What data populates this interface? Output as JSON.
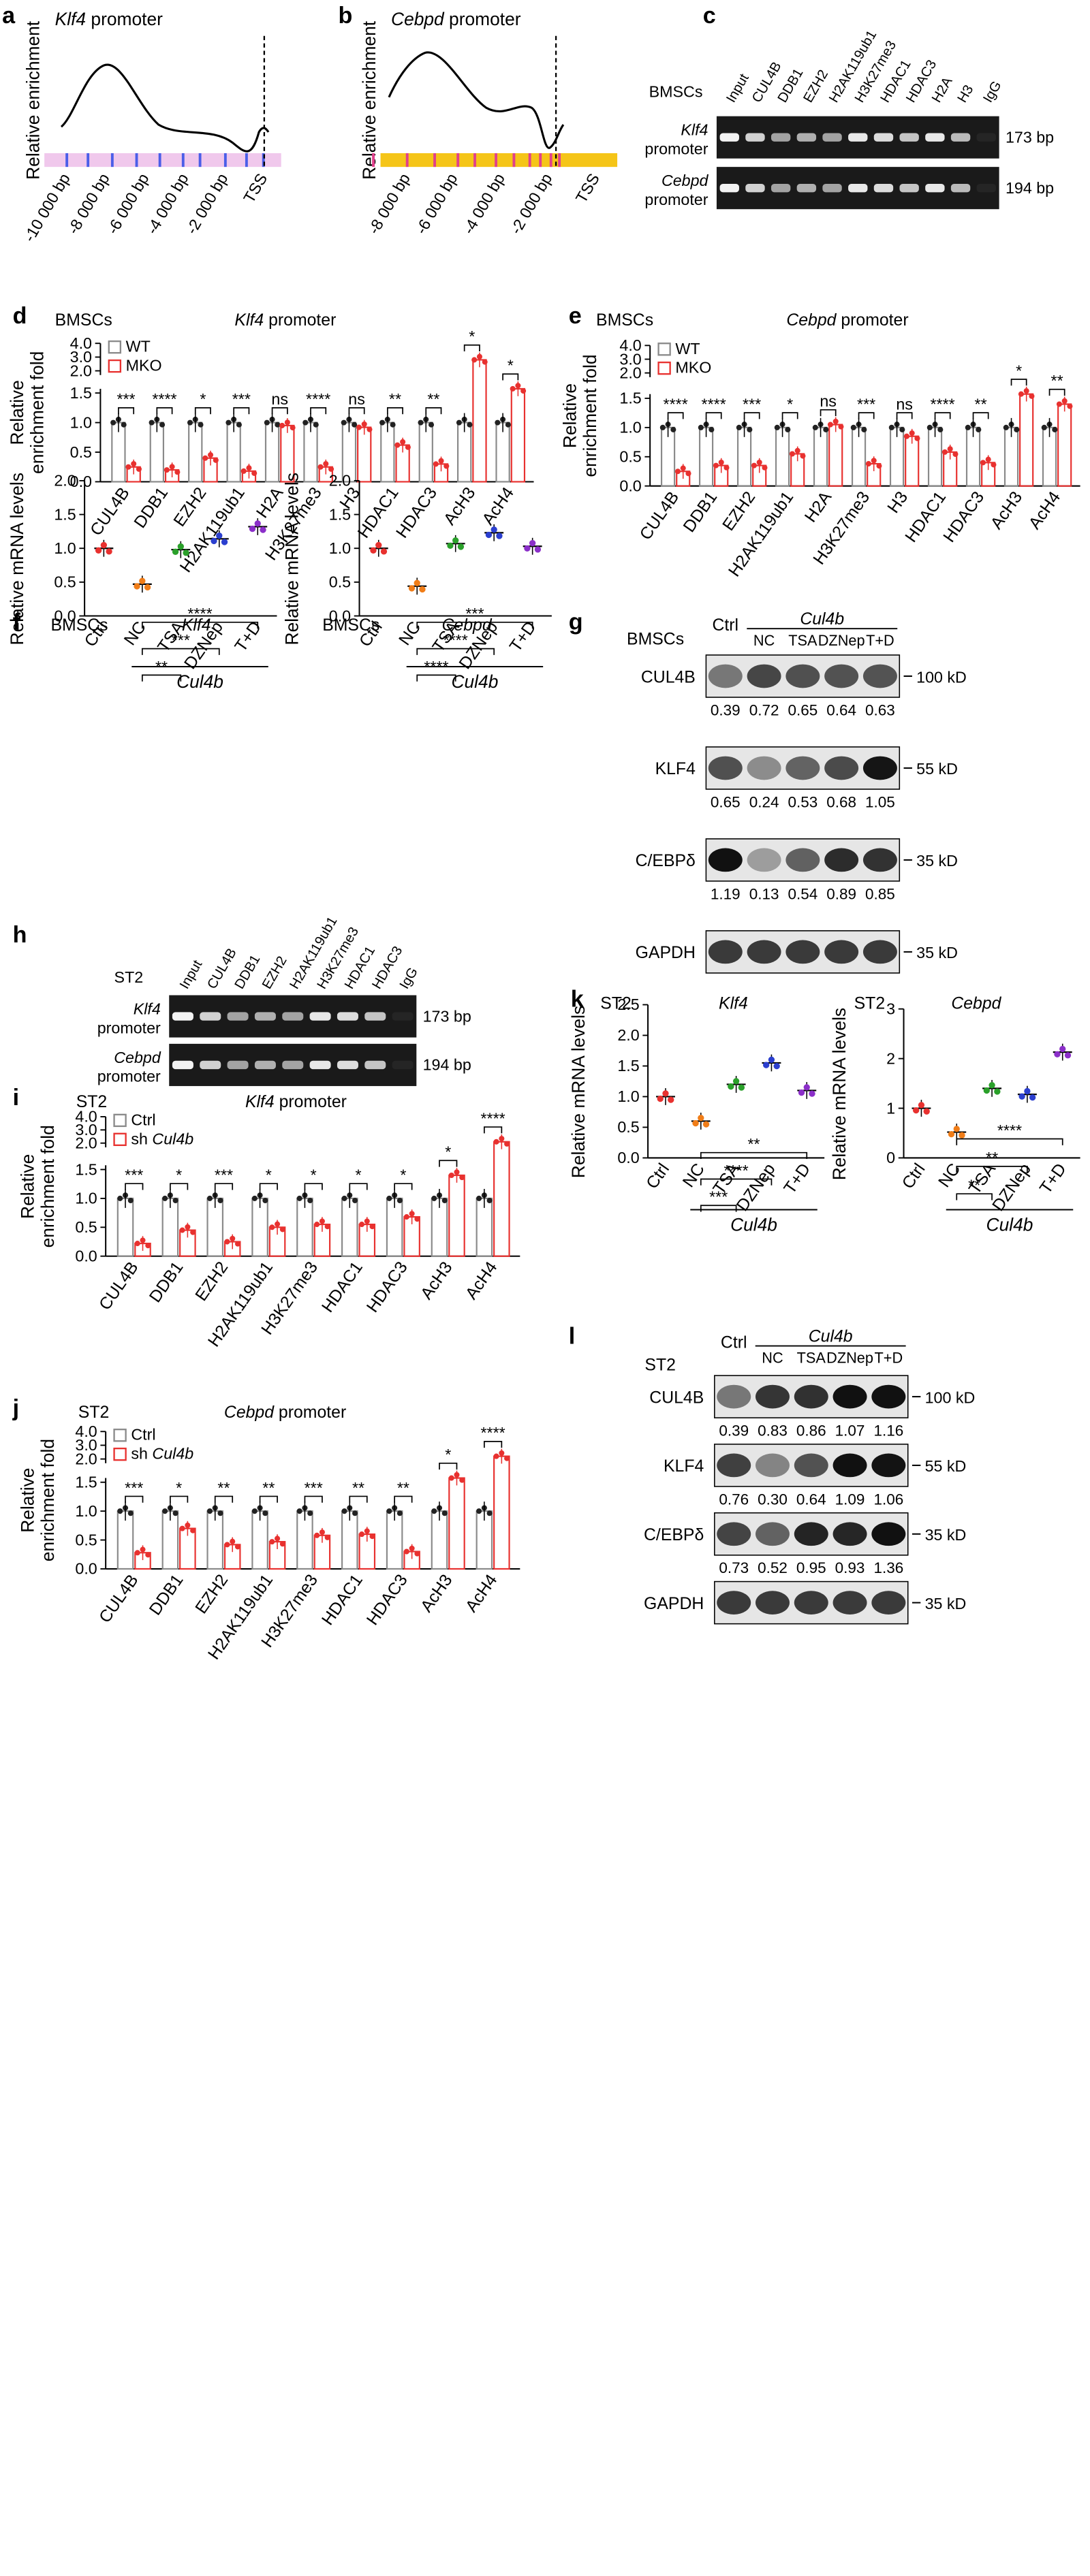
{
  "figure": {
    "panels": {
      "a": {
        "label": "a",
        "title_gene": "Klf4",
        "title_rest": " promoter",
        "ylabel": "Relative enrichment",
        "ticks": [
          "-10 000 bp",
          "-8 000 bp",
          "-6 000 bp",
          "-4 000 bp",
          "-2 000 bp",
          "TSS"
        ],
        "bar_color": "#f0c8ec",
        "mark_color": "#4a5ee8"
      },
      "b": {
        "label": "b",
        "title_gene": "Cebpd",
        "title_rest": " promoter",
        "ylabel": "Relative enrichment",
        "ticks": [
          "-8 000 bp",
          "-6 000 bp",
          "-4 000 bp",
          "-2 000 bp",
          "TSS"
        ],
        "bar_color": "#f5c518",
        "mark_color": "#e0408c"
      },
      "c": {
        "label": "c",
        "cell": "BMSCs",
        "lanes": [
          "Input",
          "CUL4B",
          "DDB1",
          "EZH2",
          "H2AK119ub1",
          "H3K27me3",
          "HDAC1",
          "HDAC3",
          "H2A",
          "H3",
          "IgG"
        ],
        "rows": [
          {
            "gene": "Klf4",
            "sub": "promoter",
            "size": "173 bp"
          },
          {
            "gene": "Cebpd",
            "sub": "promoter",
            "size": "194 bp"
          }
        ]
      },
      "d": {
        "label": "d",
        "cell": "BMSCs",
        "gene": "Klf4",
        "rest": " promoter"
      },
      "e": {
        "label": "e",
        "cell": "BMSCs",
        "gene": "Cebpd",
        "rest": " promoter"
      },
      "f": {
        "label": "f",
        "cell": "BMSCs"
      },
      "g": {
        "label": "g",
        "cell": "BMSCs",
        "ctrl": "Ctrl",
        "group": "Cul4b",
        "lanes": [
          "NC",
          "TSA",
          "DZNep",
          "T+D"
        ],
        "blots": [
          {
            "name": "CUL4B",
            "mw": "100 kD",
            "values": [
              "0.39",
              "0.72",
              "0.65",
              "0.64",
              "0.63"
            ]
          },
          {
            "name": "KLF4",
            "mw": "55 kD",
            "values": [
              "0.65",
              "0.24",
              "0.53",
              "0.68",
              "1.05"
            ]
          },
          {
            "name": "C/EBPδ",
            "mw": "35 kD",
            "values": [
              "1.19",
              "0.13",
              "0.54",
              "0.89",
              "0.85"
            ]
          },
          {
            "name": "GAPDH",
            "mw": "35 kD",
            "values": []
          }
        ]
      },
      "h": {
        "label": "h",
        "cell": "ST2",
        "lanes": [
          "Input",
          "CUL4B",
          "DDB1",
          "EZH2",
          "H2AK119ub1",
          "H3K27me3",
          "HDAC1",
          "HDAC3",
          "IgG"
        ],
        "rows": [
          {
            "gene": "Klf4",
            "sub": "promoter",
            "size": "173 bp"
          },
          {
            "gene": "Cebpd",
            "sub": "promoter",
            "size": "194 bp"
          }
        ]
      },
      "i": {
        "label": "i",
        "cell": "ST2",
        "gene": "Klf4",
        "rest": " promoter"
      },
      "j": {
        "label": "j",
        "cell": "ST2",
        "gene": "Cebpd",
        "rest": " promoter"
      },
      "k": {
        "label": "k",
        "cell": "ST2"
      },
      "l": {
        "label": "l",
        "cell": "ST2",
        "ctrl": "Ctrl",
        "group": "Cul4b",
        "lanes": [
          "NC",
          "TSA",
          "DZNep",
          "T+D"
        ],
        "blots": [
          {
            "name": "CUL4B",
            "mw": "100 kD",
            "values": [
              "0.39",
              "0.83",
              "0.86",
              "1.07",
              "1.16"
            ]
          },
          {
            "name": "KLF4",
            "mw": "55 kD",
            "values": [
              "0.76",
              "0.30",
              "0.64",
              "1.09",
              "1.06"
            ]
          },
          {
            "name": "C/EBPδ",
            "mw": "35 kD",
            "values": [
              "0.73",
              "0.52",
              "0.95",
              "0.93",
              "1.36"
            ]
          },
          {
            "name": "GAPDH",
            "mw": "35 kD",
            "values": []
          }
        ]
      }
    }
  },
  "chart_data": [
    {
      "id": "d",
      "type": "bar",
      "title": "BMSCs Klf4 promoter",
      "ylabel": "Relative enrichment fold",
      "categories": [
        "CUL4B",
        "DDB1",
        "EZH2",
        "H2AK119ub1",
        "H2A",
        "H3K27me3",
        "H3",
        "HDAC1",
        "HDAC3",
        "AcH3",
        "AcH4"
      ],
      "yticks_low": [
        "0.0",
        "0.5",
        "1.0",
        "1.5"
      ],
      "yticks_high": [
        "2.0",
        "3.0",
        "4.0"
      ],
      "series": [
        {
          "name": "WT",
          "values": [
            1,
            1,
            1,
            1,
            1,
            1,
            1,
            1,
            1,
            1,
            1
          ]
        },
        {
          "name": "MKO",
          "values": [
            0.25,
            0.2,
            0.4,
            0.18,
            0.95,
            0.25,
            0.92,
            0.62,
            0.3,
            2.8,
            1.75
          ]
        }
      ],
      "significance": [
        "***",
        "****",
        "*",
        "***",
        "ns",
        "****",
        "ns",
        "**",
        "**",
        "*",
        "*"
      ],
      "legend": [
        "WT",
        "MKO"
      ]
    },
    {
      "id": "e",
      "type": "bar",
      "title": "BMSCs Cebpd promoter",
      "ylabel": "Relative enrichment fold",
      "categories": [
        "CUL4B",
        "DDB1",
        "EZH2",
        "H2AK119ub1",
        "H2A",
        "H3K27me3",
        "H3",
        "HDAC1",
        "HDAC3",
        "AcH3",
        "AcH4"
      ],
      "yticks_low": [
        "0.0",
        "0.5",
        "1.0",
        "1.5"
      ],
      "yticks_high": [
        "2.0",
        "3.0",
        "4.0"
      ],
      "series": [
        {
          "name": "WT",
          "values": [
            1,
            1,
            1,
            1,
            1,
            1,
            1,
            1,
            1,
            1,
            1
          ]
        },
        {
          "name": "MKO",
          "values": [
            0.25,
            0.35,
            0.35,
            0.55,
            1.05,
            0.38,
            0.85,
            0.58,
            0.4,
            1.8,
            1.4
          ]
        }
      ],
      "significance": [
        "****",
        "****",
        "***",
        "*",
        "ns",
        "***",
        "ns",
        "****",
        "**",
        "*",
        "**"
      ],
      "legend": [
        "WT",
        "MKO"
      ]
    },
    {
      "id": "f1",
      "type": "scatter",
      "title": "Klf4",
      "ylabel": "Relative mRNA levels",
      "categories": [
        "Ctrl",
        "NC",
        "TSA",
        "DZNep",
        "T+D"
      ],
      "group": "Cul4b",
      "yticks": [
        "0.0",
        "0.5",
        "1.0",
        "1.5",
        "2.0"
      ],
      "ylim": [
        0,
        2
      ],
      "values": [
        1.0,
        0.47,
        0.98,
        1.14,
        1.32
      ],
      "colors": [
        "#e8312f",
        "#f07d18",
        "#2aa02a",
        "#2b3fcf",
        "#8b2fc9"
      ],
      "comparisons": [
        {
          "from": "NC",
          "to": "TSA",
          "label": "**"
        },
        {
          "from": "NC",
          "to": "DZNep",
          "label": "***"
        },
        {
          "from": "NC",
          "to": "T+D",
          "label": "****"
        }
      ]
    },
    {
      "id": "f2",
      "type": "scatter",
      "title": "Cebpd",
      "ylabel": "Relative mRNA levels",
      "categories": [
        "Ctrl",
        "NC",
        "TSA",
        "DZNep",
        "T+D"
      ],
      "group": "Cul4b",
      "yticks": [
        "0.0",
        "0.5",
        "1.0",
        "1.5",
        "2.0"
      ],
      "ylim": [
        0,
        2
      ],
      "values": [
        1.0,
        0.44,
        1.07,
        1.23,
        1.03
      ],
      "colors": [
        "#e8312f",
        "#f07d18",
        "#2aa02a",
        "#2b3fcf",
        "#8b2fc9"
      ],
      "comparisons": [
        {
          "from": "NC",
          "to": "TSA",
          "label": "****"
        },
        {
          "from": "NC",
          "to": "DZNep",
          "label": "****"
        },
        {
          "from": "NC",
          "to": "T+D",
          "label": "***"
        }
      ]
    },
    {
      "id": "i",
      "type": "bar",
      "title": "ST2 Klf4 promoter",
      "ylabel": "Relative enrichment fold",
      "categories": [
        "CUL4B",
        "DDB1",
        "EZH2",
        "H2AK119ub1",
        "H3K27me3",
        "HDAC1",
        "HDAC3",
        "AcH3",
        "AcH4"
      ],
      "yticks_low": [
        "0.0",
        "0.5",
        "1.0",
        "1.5"
      ],
      "yticks_high": [
        "2.0",
        "3.0",
        "4.0"
      ],
      "series": [
        {
          "name": "Ctrl",
          "values": [
            1,
            1,
            1,
            1,
            1,
            1,
            1,
            1,
            1
          ]
        },
        {
          "name": "sh Cul4b",
          "values": [
            0.22,
            0.45,
            0.25,
            0.5,
            0.55,
            0.55,
            0.68,
            1.4,
            2.1
          ]
        }
      ],
      "significance": [
        "***",
        "*",
        "***",
        "*",
        "*",
        "*",
        "*",
        "*",
        "****"
      ],
      "legend": [
        "Ctrl",
        "sh Cul4b"
      ]
    },
    {
      "id": "j",
      "type": "bar",
      "title": "ST2 Cebpd promoter",
      "ylabel": "Relative enrichment fold",
      "categories": [
        "CUL4B",
        "DDB1",
        "EZH2",
        "H2AK119ub1",
        "H3K27me3",
        "HDAC1",
        "HDAC3",
        "AcH3",
        "AcH4"
      ],
      "yticks_low": [
        "0.0",
        "0.5",
        "1.0",
        "1.5"
      ],
      "yticks_high": [
        "2.0",
        "3.0",
        "4.0"
      ],
      "series": [
        {
          "name": "Ctrl",
          "values": [
            1,
            1,
            1,
            1,
            1,
            1,
            1,
            1,
            1
          ]
        },
        {
          "name": "sh Cul4b",
          "values": [
            0.28,
            0.7,
            0.42,
            0.47,
            0.58,
            0.6,
            0.3,
            1.65,
            2.2
          ]
        }
      ],
      "significance": [
        "***",
        "*",
        "**",
        "**",
        "***",
        "**",
        "**",
        "*",
        "****"
      ],
      "legend": [
        "Ctrl",
        "sh Cul4b"
      ]
    },
    {
      "id": "k1",
      "type": "scatter",
      "title": "Klf4",
      "ylabel": "Relative mRNA levels",
      "categories": [
        "Ctrl",
        "NC",
        "TSA",
        "DZNep",
        "T+D"
      ],
      "group": "Cul4b",
      "yticks": [
        "0.0",
        "0.5",
        "1.0",
        "1.5",
        "2.0",
        "2.5"
      ],
      "ylim": [
        0,
        2.5
      ],
      "values": [
        1.0,
        0.6,
        1.2,
        1.55,
        1.1
      ],
      "colors": [
        "#e8312f",
        "#f07d18",
        "#2aa02a",
        "#2b3fcf",
        "#8b2fc9"
      ],
      "comparisons": [
        {
          "from": "NC",
          "to": "TSA",
          "label": "***"
        },
        {
          "from": "NC",
          "to": "DZNep",
          "label": "****"
        },
        {
          "from": "NC",
          "to": "T+D",
          "label": "**"
        }
      ]
    },
    {
      "id": "k2",
      "type": "scatter",
      "title": "Cebpd",
      "ylabel": "Relative mRNA levels",
      "categories": [
        "Ctrl",
        "NC",
        "TSA",
        "DZNep",
        "T+D"
      ],
      "group": "Cul4b",
      "yticks": [
        "0",
        "1",
        "2",
        "3"
      ],
      "ylim": [
        0,
        3
      ],
      "values": [
        1.0,
        0.52,
        1.4,
        1.28,
        2.13
      ],
      "colors": [
        "#e8312f",
        "#f07d18",
        "#2aa02a",
        "#2b3fcf",
        "#8b2fc9"
      ],
      "comparisons": [
        {
          "from": "NC",
          "to": "TSA",
          "label": "**"
        },
        {
          "from": "NC",
          "to": "DZNep",
          "label": "**"
        },
        {
          "from": "NC",
          "to": "T+D",
          "label": "****"
        }
      ]
    }
  ]
}
